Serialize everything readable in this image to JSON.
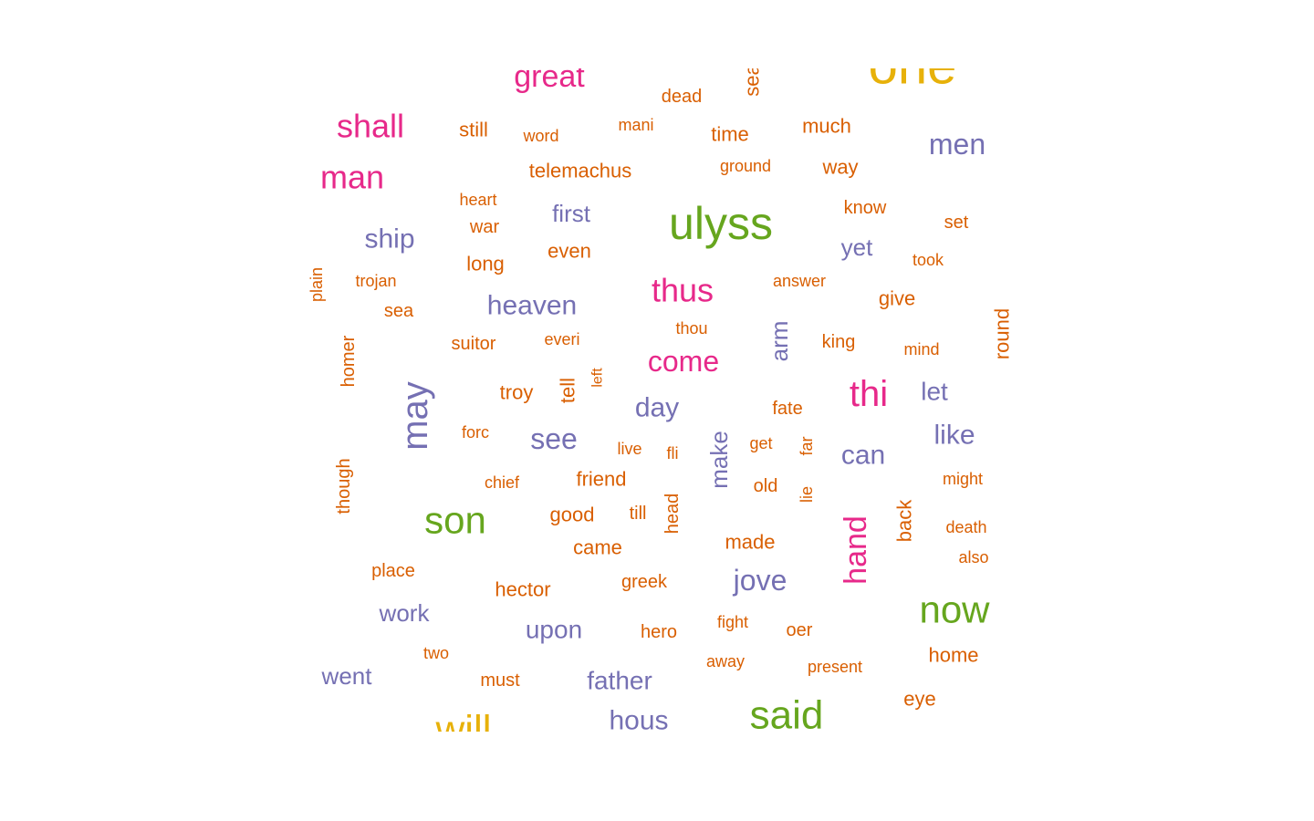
{
  "chart_data": {
    "type": "wordcloud",
    "palette": {
      "c1": "#E7B10A",
      "c2": "#E7298A",
      "c3": "#D95F02",
      "c4": "#7570B3",
      "c5": "#66A61E"
    },
    "words": [
      {
        "text": "one",
        "color": "c1",
        "rotated": false
      },
      {
        "text": "will",
        "color": "c1",
        "rotated": false
      },
      {
        "text": "great",
        "color": "c2",
        "rotated": false
      },
      {
        "text": "shall",
        "color": "c2",
        "rotated": false
      },
      {
        "text": "man",
        "color": "c2",
        "rotated": false
      },
      {
        "text": "thus",
        "color": "c2",
        "rotated": false
      },
      {
        "text": "come",
        "color": "c2",
        "rotated": false
      },
      {
        "text": "thi",
        "color": "c2",
        "rotated": false
      },
      {
        "text": "hand",
        "color": "c2",
        "rotated": true
      },
      {
        "text": "ulyss",
        "color": "c5",
        "rotated": false
      },
      {
        "text": "son",
        "color": "c5",
        "rotated": false
      },
      {
        "text": "now",
        "color": "c5",
        "rotated": false
      },
      {
        "text": "said",
        "color": "c5",
        "rotated": false
      },
      {
        "text": "men",
        "color": "c4",
        "rotated": false
      },
      {
        "text": "ship",
        "color": "c4",
        "rotated": false
      },
      {
        "text": "first",
        "color": "c4",
        "rotated": false
      },
      {
        "text": "yet",
        "color": "c4",
        "rotated": false
      },
      {
        "text": "heaven",
        "color": "c4",
        "rotated": false
      },
      {
        "text": "arm",
        "color": "c4",
        "rotated": true
      },
      {
        "text": "may",
        "color": "c4",
        "rotated": true
      },
      {
        "text": "day",
        "color": "c4",
        "rotated": false
      },
      {
        "text": "let",
        "color": "c4",
        "rotated": false
      },
      {
        "text": "see",
        "color": "c4",
        "rotated": false
      },
      {
        "text": "like",
        "color": "c4",
        "rotated": false
      },
      {
        "text": "make",
        "color": "c4",
        "rotated": true
      },
      {
        "text": "can",
        "color": "c4",
        "rotated": false
      },
      {
        "text": "jove",
        "color": "c4",
        "rotated": false
      },
      {
        "text": "work",
        "color": "c4",
        "rotated": false
      },
      {
        "text": "upon",
        "color": "c4",
        "rotated": false
      },
      {
        "text": "went",
        "color": "c4",
        "rotated": false
      },
      {
        "text": "father",
        "color": "c4",
        "rotated": false
      },
      {
        "text": "hous",
        "color": "c4",
        "rotated": false
      },
      {
        "text": "sea",
        "color": "c3",
        "rotated": true
      },
      {
        "text": "dead",
        "color": "c3",
        "rotated": false
      },
      {
        "text": "still",
        "color": "c3",
        "rotated": false
      },
      {
        "text": "word",
        "color": "c3",
        "rotated": false
      },
      {
        "text": "mani",
        "color": "c3",
        "rotated": false
      },
      {
        "text": "time",
        "color": "c3",
        "rotated": false
      },
      {
        "text": "much",
        "color": "c3",
        "rotated": false
      },
      {
        "text": "telemachus",
        "color": "c3",
        "rotated": false
      },
      {
        "text": "ground",
        "color": "c3",
        "rotated": false
      },
      {
        "text": "way",
        "color": "c3",
        "rotated": false
      },
      {
        "text": "heart",
        "color": "c3",
        "rotated": false
      },
      {
        "text": "know",
        "color": "c3",
        "rotated": false
      },
      {
        "text": "war",
        "color": "c3",
        "rotated": false
      },
      {
        "text": "set",
        "color": "c3",
        "rotated": false
      },
      {
        "text": "even",
        "color": "c3",
        "rotated": false
      },
      {
        "text": "long",
        "color": "c3",
        "rotated": false
      },
      {
        "text": "took",
        "color": "c3",
        "rotated": false
      },
      {
        "text": "plain",
        "color": "c3",
        "rotated": true
      },
      {
        "text": "trojan",
        "color": "c3",
        "rotated": false
      },
      {
        "text": "answer",
        "color": "c3",
        "rotated": false
      },
      {
        "text": "give",
        "color": "c3",
        "rotated": false
      },
      {
        "text": "sea",
        "color": "c3",
        "rotated": false
      },
      {
        "text": "round",
        "color": "c3",
        "rotated": true
      },
      {
        "text": "thou",
        "color": "c3",
        "rotated": false
      },
      {
        "text": "homer",
        "color": "c3",
        "rotated": true
      },
      {
        "text": "suitor",
        "color": "c3",
        "rotated": false
      },
      {
        "text": "everi",
        "color": "c3",
        "rotated": false
      },
      {
        "text": "king",
        "color": "c3",
        "rotated": false
      },
      {
        "text": "mind",
        "color": "c3",
        "rotated": false
      },
      {
        "text": "troy",
        "color": "c3",
        "rotated": false
      },
      {
        "text": "tell",
        "color": "c3",
        "rotated": true
      },
      {
        "text": "left",
        "color": "c3",
        "rotated": true
      },
      {
        "text": "fate",
        "color": "c3",
        "rotated": false
      },
      {
        "text": "forc",
        "color": "c3",
        "rotated": false
      },
      {
        "text": "live",
        "color": "c3",
        "rotated": false
      },
      {
        "text": "fli",
        "color": "c3",
        "rotated": false
      },
      {
        "text": "get",
        "color": "c3",
        "rotated": false
      },
      {
        "text": "far",
        "color": "c3",
        "rotated": true
      },
      {
        "text": "though",
        "color": "c3",
        "rotated": true
      },
      {
        "text": "chief",
        "color": "c3",
        "rotated": false
      },
      {
        "text": "friend",
        "color": "c3",
        "rotated": false
      },
      {
        "text": "old",
        "color": "c3",
        "rotated": false
      },
      {
        "text": "lie",
        "color": "c3",
        "rotated": true
      },
      {
        "text": "might",
        "color": "c3",
        "rotated": false
      },
      {
        "text": "good",
        "color": "c3",
        "rotated": false
      },
      {
        "text": "till",
        "color": "c3",
        "rotated": false
      },
      {
        "text": "head",
        "color": "c3",
        "rotated": true
      },
      {
        "text": "back",
        "color": "c3",
        "rotated": true
      },
      {
        "text": "death",
        "color": "c3",
        "rotated": false
      },
      {
        "text": "came",
        "color": "c3",
        "rotated": false
      },
      {
        "text": "made",
        "color": "c3",
        "rotated": false
      },
      {
        "text": "also",
        "color": "c3",
        "rotated": false
      },
      {
        "text": "place",
        "color": "c3",
        "rotated": false
      },
      {
        "text": "greek",
        "color": "c3",
        "rotated": false
      },
      {
        "text": "hector",
        "color": "c3",
        "rotated": false
      },
      {
        "text": "fight",
        "color": "c3",
        "rotated": false
      },
      {
        "text": "hero",
        "color": "c3",
        "rotated": false
      },
      {
        "text": "oer",
        "color": "c3",
        "rotated": false
      },
      {
        "text": "two",
        "color": "c3",
        "rotated": false
      },
      {
        "text": "home",
        "color": "c3",
        "rotated": false
      },
      {
        "text": "away",
        "color": "c3",
        "rotated": false
      },
      {
        "text": "present",
        "color": "c3",
        "rotated": false
      },
      {
        "text": "must",
        "color": "c3",
        "rotated": false
      },
      {
        "text": "eye",
        "color": "c3",
        "rotated": false
      }
    ]
  }
}
